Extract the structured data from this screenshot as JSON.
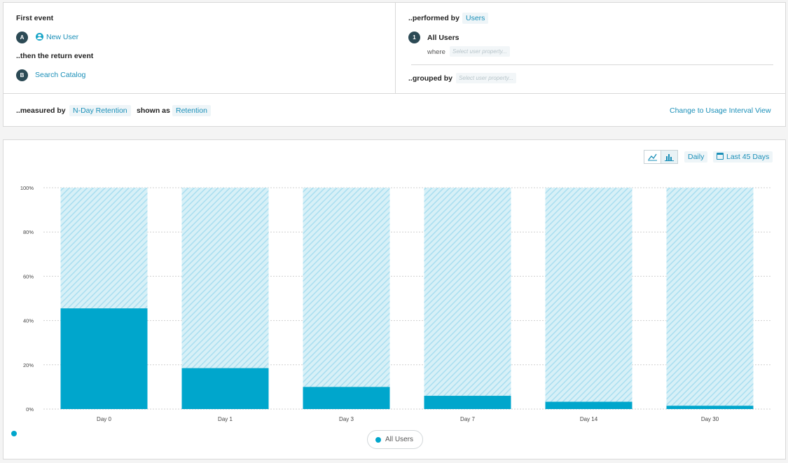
{
  "query": {
    "first_event_label": "First event",
    "first_event": {
      "badge": "A",
      "name": "New User",
      "icon": "user-icon"
    },
    "return_event_label": "..then the return event",
    "return_event": {
      "badge": "B",
      "name": "Search Catalog"
    },
    "performed_by_label": "..performed by",
    "performed_by_value": "Users",
    "segment": {
      "badge": "1",
      "name": "All Users",
      "where_label": "where",
      "where_placeholder": "Select user property..."
    },
    "grouped_by_label": "..grouped by",
    "grouped_by_placeholder": "Select user property..."
  },
  "measure": {
    "measured_by_label": "..measured by",
    "measured_by_value": "N-Day Retention",
    "shown_as_label": "shown as",
    "shown_as_value": "Retention",
    "change_view_link": "Change to Usage Interval View"
  },
  "toolbar": {
    "line_chart_icon": "line-chart-icon",
    "bar_chart_icon": "bar-chart-icon",
    "active_chart": "bar",
    "interval": "Daily",
    "range": "Last 45 Days",
    "range_icon": "calendar-icon"
  },
  "legend": {
    "label": "All Users"
  },
  "colors": {
    "accent": "#00a6cc",
    "hatch": "#bfe7f2",
    "link": "#1a8fb8",
    "badge": "#2c4a55"
  },
  "chart_data": {
    "type": "bar",
    "stacked": true,
    "categories": [
      "Day 0",
      "Day 1",
      "Day 3",
      "Day 7",
      "Day 14",
      "Day 30"
    ],
    "series": [
      {
        "name": "All Users",
        "values": [
          45.5,
          18.5,
          10,
          6,
          3.3,
          1.5
        ]
      }
    ],
    "ylim": [
      0,
      100
    ],
    "yticks": [
      "0%",
      "20%",
      "40%",
      "60%",
      "80%",
      "100%"
    ],
    "grid": true,
    "legend": "bottom-center"
  }
}
